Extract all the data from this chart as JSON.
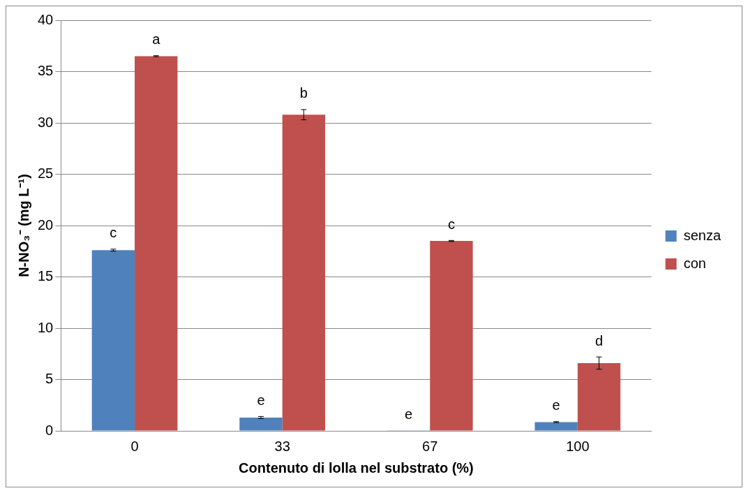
{
  "chart_data": {
    "type": "bar",
    "xlabel": "Contenuto di lolla nel substrato (%)",
    "ylabel": "N-NO₃⁻ (mg L⁻¹)",
    "categories": [
      "0",
      "33",
      "67",
      "100"
    ],
    "series": [
      {
        "name": "senza",
        "color": "#4f81bd",
        "values": [
          17.6,
          1.3,
          0.05,
          0.85
        ],
        "errors": [
          0.1,
          0.1,
          null,
          0.05
        ],
        "value_labels": [
          "c",
          "e",
          "e",
          "e"
        ]
      },
      {
        "name": "con",
        "color": "#c0504d",
        "values": [
          36.5,
          30.8,
          18.5,
          6.6
        ],
        "errors": [
          0.05,
          0.5,
          0.05,
          0.6
        ],
        "value_labels": [
          "a",
          "b",
          "c",
          "d"
        ]
      }
    ],
    "ylim": [
      0,
      40
    ],
    "yticks": [
      0,
      5,
      10,
      15,
      20,
      25,
      30,
      35,
      40
    ],
    "grid": "y",
    "legend": "right"
  }
}
